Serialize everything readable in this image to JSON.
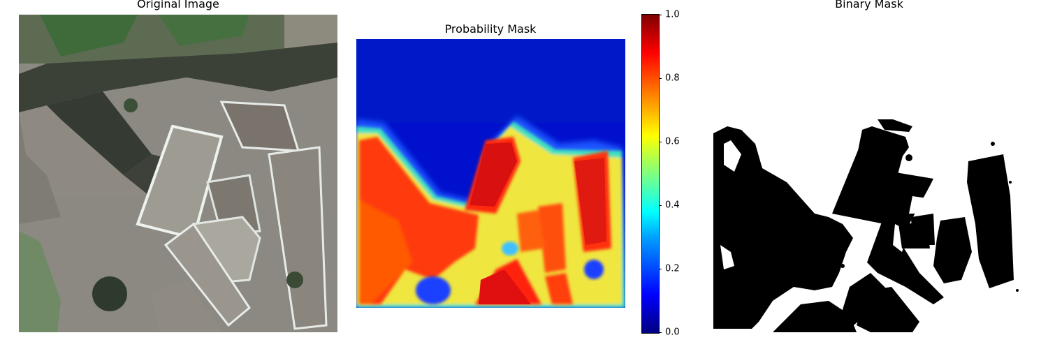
{
  "panels": {
    "original": {
      "title": "Original Image"
    },
    "probability": {
      "title": "Probability Mask"
    },
    "binary": {
      "title": "Binary Mask"
    }
  },
  "colorbar": {
    "colormap": "jet",
    "range": [
      0.0,
      1.0
    ],
    "ticks": [
      "0.0",
      "0.2",
      "0.4",
      "0.6",
      "0.8",
      "1.0"
    ]
  }
}
